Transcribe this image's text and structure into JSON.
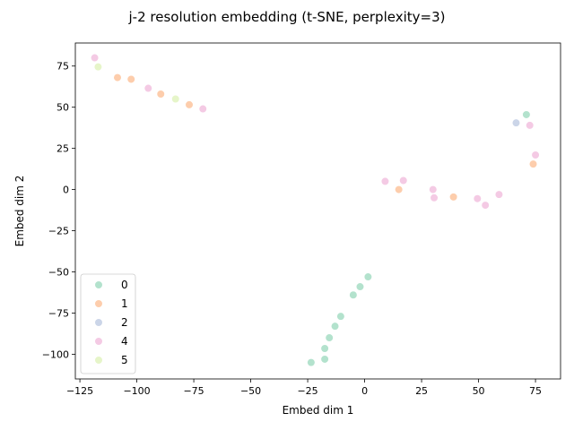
{
  "chart_data": {
    "type": "scatter",
    "title": "j-2 resolution embedding (t-SNE, perplexity=3)",
    "xlabel": "Embed dim 1",
    "ylabel": "Embed dim 2",
    "xlim": [
      -127,
      86
    ],
    "ylim": [
      -115,
      89
    ],
    "xticks": [
      -125,
      -100,
      -75,
      -50,
      -25,
      0,
      25,
      50,
      75
    ],
    "yticks": [
      -100,
      -75,
      -50,
      -25,
      0,
      25,
      50,
      75
    ],
    "grid": false,
    "legend": {
      "position": "lower-left",
      "title": ""
    },
    "series": [
      {
        "name": "0",
        "color": "#b3e2cd",
        "points": [
          [
            1.5,
            -53
          ],
          [
            -2,
            -59
          ],
          [
            -5,
            -64
          ],
          [
            -10.5,
            -77
          ],
          [
            -13,
            -83
          ],
          [
            -15.5,
            -90
          ],
          [
            -17.5,
            -96.5
          ],
          [
            -17.5,
            -103
          ],
          [
            -23.5,
            -105
          ],
          [
            71,
            45.5
          ]
        ]
      },
      {
        "name": "1",
        "color": "#fdcdac",
        "points": [
          [
            -108.5,
            68
          ],
          [
            -102.5,
            67
          ],
          [
            -89.5,
            58
          ],
          [
            -77,
            51.5
          ],
          [
            15,
            0
          ],
          [
            39,
            -4.5
          ],
          [
            74,
            15.5
          ]
        ]
      },
      {
        "name": "2",
        "color": "#cbd5e8",
        "points": [
          [
            66.5,
            40.5
          ]
        ]
      },
      {
        "name": "4",
        "color": "#f4cae4",
        "points": [
          [
            -118.5,
            80
          ],
          [
            -95,
            61.5
          ],
          [
            -71,
            49
          ],
          [
            9,
            5
          ],
          [
            17,
            5.5
          ],
          [
            30,
            0
          ],
          [
            30.5,
            -5
          ],
          [
            49.5,
            -5.5
          ],
          [
            53,
            -9.5
          ],
          [
            59,
            -3
          ],
          [
            72.5,
            39
          ],
          [
            75,
            21
          ]
        ]
      },
      {
        "name": "5",
        "color": "#e6f5c9",
        "points": [
          [
            -117,
            74.5
          ],
          [
            -83,
            55
          ]
        ]
      }
    ]
  }
}
